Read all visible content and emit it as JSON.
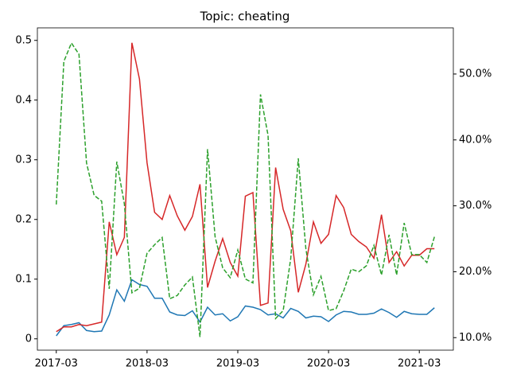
{
  "chart_data": {
    "type": "line",
    "title": "Topic: cheating",
    "categories": [
      "2017-03",
      "2017-04",
      "2017-05",
      "2017-06",
      "2017-07",
      "2017-08",
      "2017-09",
      "2017-10",
      "2017-11",
      "2017-12",
      "2018-01",
      "2018-02",
      "2018-03",
      "2018-04",
      "2018-05",
      "2018-06",
      "2018-07",
      "2018-08",
      "2018-09",
      "2018-10",
      "2018-11",
      "2018-12",
      "2019-01",
      "2019-02",
      "2019-03",
      "2019-04",
      "2019-05",
      "2019-06",
      "2019-07",
      "2019-08",
      "2019-09",
      "2019-10",
      "2019-11",
      "2019-12",
      "2020-01",
      "2020-02",
      "2020-03",
      "2020-04",
      "2020-05",
      "2020-06",
      "2020-07",
      "2020-08",
      "2020-09",
      "2020-10",
      "2020-11",
      "2020-12",
      "2021-01",
      "2021-02",
      "2021-03",
      "2021-04",
      "2021-05"
    ],
    "xticks": [
      "2017-03",
      "2018-03",
      "2019-03",
      "2020-03",
      "2021-03"
    ],
    "series": [
      {
        "color": "#1f77b4",
        "style": "solid",
        "values": [
          0.005,
          0.022,
          0.024,
          0.027,
          0.014,
          0.012,
          0.013,
          0.04,
          0.082,
          0.063,
          0.099,
          0.091,
          0.088,
          0.068,
          0.068,
          0.045,
          0.04,
          0.039,
          0.047,
          0.028,
          0.053,
          0.04,
          0.042,
          0.03,
          0.037,
          0.055,
          0.053,
          0.049,
          0.04,
          0.042,
          0.035,
          0.051,
          0.046,
          0.035,
          0.038,
          0.037,
          0.029,
          0.04,
          0.046,
          0.045,
          0.041,
          0.041,
          0.043,
          0.05,
          0.044,
          0.036,
          0.046,
          0.042,
          0.041,
          0.041,
          0.052
        ]
      },
      {
        "color": "#d62728",
        "style": "solid",
        "values": [
          0.012,
          0.02,
          0.02,
          0.024,
          0.022,
          0.025,
          0.028,
          0.196,
          0.141,
          0.17,
          0.496,
          0.435,
          0.295,
          0.212,
          0.2,
          0.24,
          0.206,
          0.182,
          0.205,
          0.259,
          0.086,
          0.13,
          0.168,
          0.128,
          0.105,
          0.239,
          0.245,
          0.056,
          0.06,
          0.287,
          0.217,
          0.181,
          0.078,
          0.125,
          0.196,
          0.16,
          0.175,
          0.24,
          0.22,
          0.175,
          0.163,
          0.154,
          0.135,
          0.208,
          0.128,
          0.146,
          0.122,
          0.14,
          0.14,
          0.151,
          0.151
        ]
      },
      {
        "color": "#2ca02c",
        "style": "dashed",
        "axis": "y2",
        "values": [
          30.2,
          51.9,
          54.7,
          53.0,
          36.5,
          31.6,
          30.7,
          17.4,
          36.7,
          30.3,
          16.8,
          17.5,
          22.8,
          24.1,
          25.2,
          15.9,
          16.4,
          18.0,
          19.2,
          10.1,
          38.6,
          25.3,
          20.6,
          19.1,
          23.3,
          18.9,
          18.3,
          46.9,
          40.7,
          12.9,
          14.1,
          22.0,
          37.2,
          23.5,
          16.5,
          19.3,
          14.1,
          14.4,
          17.1,
          20.4,
          20.0,
          20.9,
          24.0,
          19.5,
          25.6,
          19.5,
          27.4,
          22.6,
          22.6,
          21.4,
          25.3
        ]
      }
    ],
    "ylim": [
      -0.019,
      0.521
    ],
    "yticks": [
      0.0,
      0.1,
      0.2,
      0.3,
      0.4,
      0.5
    ],
    "y2lim": [
      8.1,
      57.0
    ],
    "y2ticks": [
      {
        "value": 10,
        "label": "10.0%"
      },
      {
        "value": 20,
        "label": "20.0%"
      },
      {
        "value": 30,
        "label": "30.0%"
      },
      {
        "value": 40,
        "label": "40.0%"
      },
      {
        "value": 50,
        "label": "50.0%"
      }
    ]
  }
}
